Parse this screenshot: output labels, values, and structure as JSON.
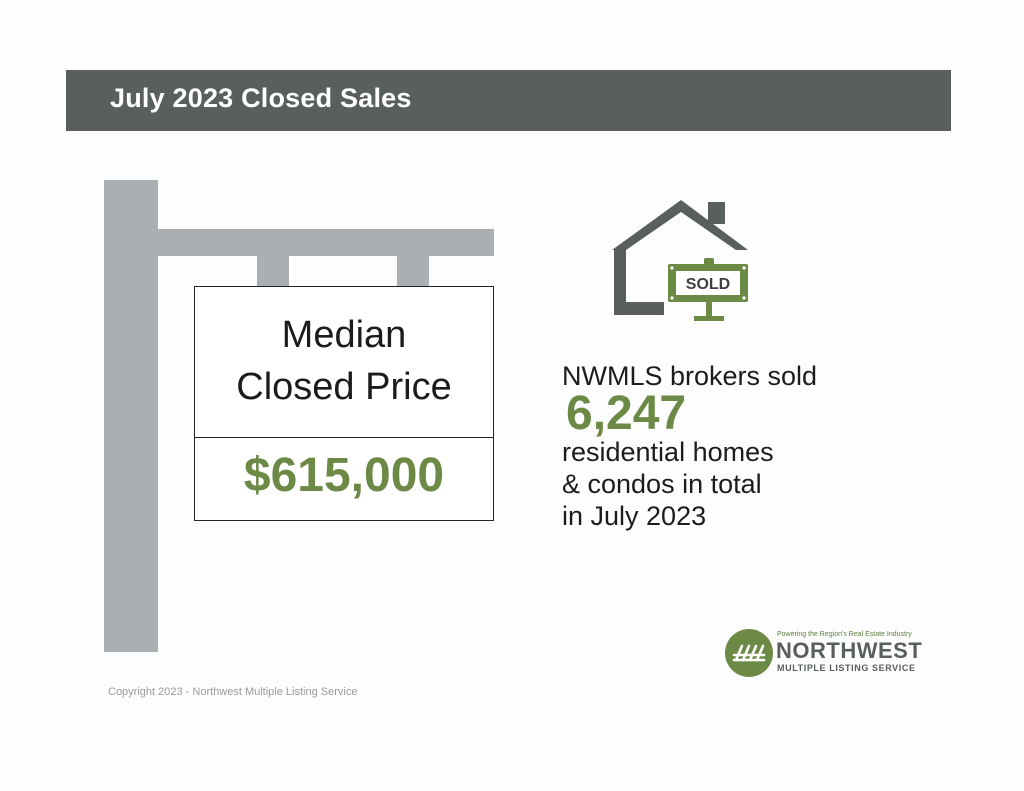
{
  "header": {
    "title": "July 2023 Closed Sales",
    "background_color": "#585f5c"
  },
  "sign": {
    "label_line1": "Median",
    "label_line2": "Closed Price",
    "value": "$615,000",
    "value_color": "#6c8a46"
  },
  "house_icon": {
    "icon": "house-with-sold-sign-icon",
    "sold_text": "SOLD"
  },
  "stats": {
    "line1": "NWMLS brokers sold",
    "number": "6,247",
    "line2": "residential homes",
    "line3": "& condos in total",
    "line4": "in July 2023"
  },
  "footer": {
    "copyright": "Copyright 2023 - Northwest Multiple Listing Service"
  },
  "logo": {
    "tagline": "Powering the Region's Real Estate Industry",
    "name": "NORTHWEST",
    "subtitle": "MULTIPLE LISTING SERVICE",
    "brand_green": "#6c8a46"
  }
}
